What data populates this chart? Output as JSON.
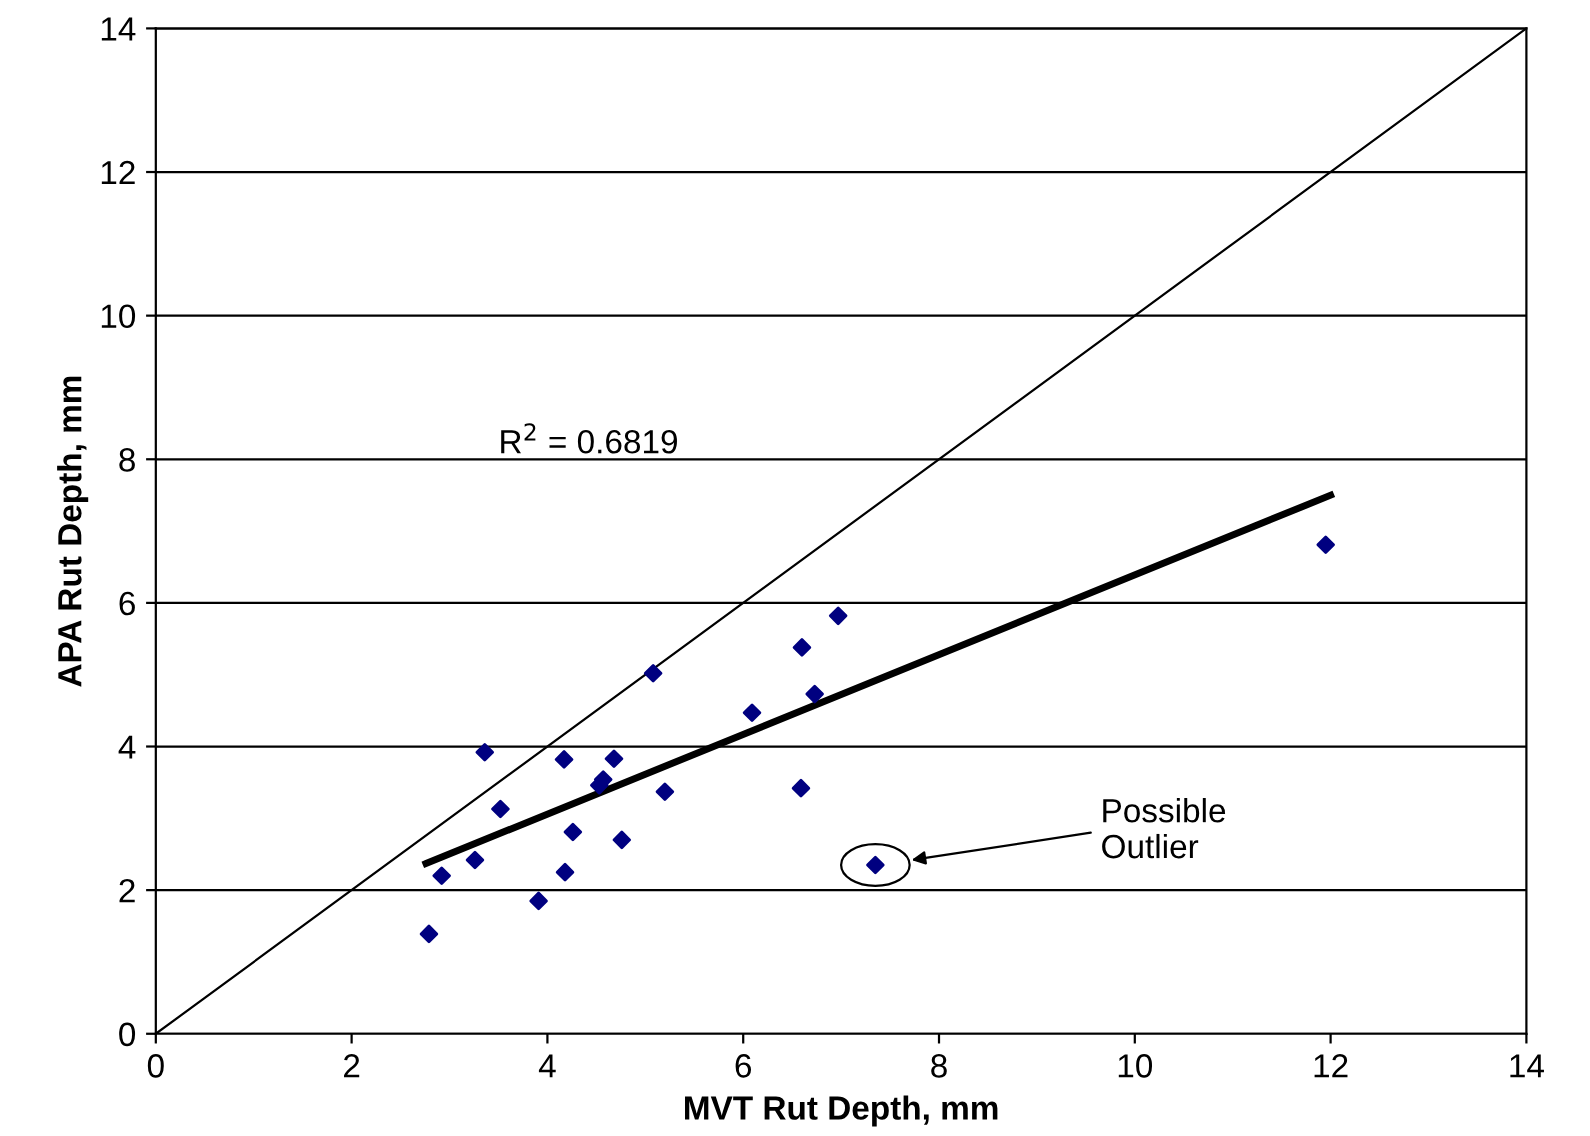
{
  "chart_data": {
    "type": "scatter",
    "xlabel": "MVT Rut Depth, mm",
    "ylabel": "APA Rut Depth, mm",
    "xlim": [
      0,
      14
    ],
    "ylim": [
      0,
      14
    ],
    "xticks": [
      0,
      2,
      4,
      6,
      8,
      10,
      12,
      14
    ],
    "yticks": [
      0,
      2,
      4,
      6,
      8,
      10,
      12,
      14
    ],
    "grid": "y",
    "series": [
      {
        "color": "#000080",
        "x": [
          2.79,
          2.92,
          3.26,
          3.36,
          3.52,
          3.91,
          4.17,
          4.18,
          4.26,
          4.53,
          4.57,
          4.68,
          4.76,
          5.08,
          5.2,
          6.09,
          6.59,
          6.6,
          6.73,
          6.97,
          7.35,
          11.95
        ],
        "marker": "diamond",
        "values": [
          1.39,
          2.2,
          2.42,
          3.92,
          3.13,
          1.85,
          3.82,
          2.25,
          2.81,
          3.46,
          3.54,
          3.83,
          2.7,
          5.02,
          3.37,
          4.47,
          3.42,
          5.38,
          4.73,
          5.82,
          2.35,
          6.81
        ]
      },
      {
        "type": "line",
        "marker": "none",
        "color": "#000000",
        "x": [
          2.76,
          12
        ],
        "values": [
          2.37,
          7.5
        ]
      },
      {
        "type": "line",
        "marker": "none",
        "color": "#000000",
        "x": [
          0,
          14
        ],
        "values": [
          0,
          14
        ]
      }
    ],
    "annotations": [
      {
        "text": "R$^{2}$ = 0.6819"
      },
      "Possible\nOutlier"
    ]
  }
}
